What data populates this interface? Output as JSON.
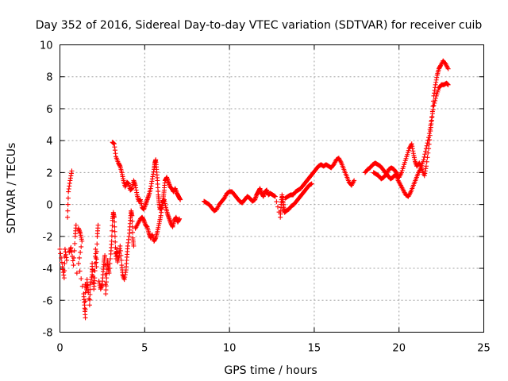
{
  "chart_data": {
    "type": "scatter",
    "title": "Day 352 of 2016, Sidereal Day-to-day VTEC variation (SDTVAR) for receiver cuib",
    "xlabel": "GPS time / hours",
    "ylabel": "SDTVAR / TECUs",
    "xlim": [
      0,
      25
    ],
    "ylim": [
      -8,
      10
    ],
    "xticks": [
      "0",
      "5",
      "10",
      "15",
      "20",
      "25"
    ],
    "yticks": [
      "-8",
      "-6",
      "-4",
      "-2",
      "0",
      "2",
      "4",
      "6",
      "8",
      "10"
    ],
    "grid": true,
    "marker": "plus",
    "color": "#ff0000",
    "series": [
      {
        "name": "SDTVAR",
        "points": [
          [
            0.0,
            -2.8
          ],
          [
            0.15,
            -3.9
          ],
          [
            0.25,
            -4.6
          ],
          [
            0.3,
            -2.8
          ],
          [
            0.4,
            -3.5
          ],
          [
            0.45,
            -0.8
          ],
          [
            0.5,
            0.8
          ],
          [
            0.6,
            1.5
          ],
          [
            0.7,
            2.1
          ],
          [
            0.55,
            -3.0
          ],
          [
            0.65,
            -2.7
          ],
          [
            0.8,
            -3.8
          ],
          [
            0.9,
            -2.0
          ],
          [
            0.95,
            -1.3
          ],
          [
            1.0,
            -4.3
          ],
          [
            1.1,
            -1.5
          ],
          [
            1.2,
            -1.8
          ],
          [
            1.3,
            -2.3
          ],
          [
            1.1,
            -3.7
          ],
          [
            1.4,
            -5.6
          ],
          [
            1.45,
            -6.3
          ],
          [
            1.5,
            -7.1
          ],
          [
            1.5,
            -5.0
          ],
          [
            1.6,
            -5.4
          ],
          [
            1.6,
            -4.7
          ],
          [
            1.75,
            -6.3
          ],
          [
            1.8,
            -5.0
          ],
          [
            1.9,
            -4.4
          ],
          [
            1.9,
            -3.7
          ],
          [
            2.0,
            -5.3
          ],
          [
            2.05,
            -4.6
          ],
          [
            2.1,
            -2.8
          ],
          [
            2.15,
            -3.9
          ],
          [
            2.2,
            -2.0
          ],
          [
            2.25,
            -1.3
          ],
          [
            2.3,
            -4.8
          ],
          [
            2.4,
            -5.3
          ],
          [
            2.5,
            -5.0
          ],
          [
            2.55,
            -4.2
          ],
          [
            2.6,
            -3.6
          ],
          [
            2.65,
            -3.2
          ],
          [
            2.7,
            -5.6
          ],
          [
            2.75,
            -4.6
          ],
          [
            2.8,
            -3.5
          ],
          [
            2.85,
            -3.9
          ],
          [
            2.9,
            -4.3
          ],
          [
            3.0,
            -3.1
          ],
          [
            3.05,
            -2.3
          ],
          [
            3.1,
            -1.0
          ],
          [
            3.15,
            -0.5
          ],
          [
            3.2,
            -0.8
          ],
          [
            3.25,
            -2.0
          ],
          [
            3.3,
            -3.4
          ],
          [
            3.35,
            -2.8
          ],
          [
            3.4,
            -3.6
          ],
          [
            3.5,
            -3.2
          ],
          [
            3.55,
            -2.6
          ],
          [
            3.65,
            -3.8
          ],
          [
            3.7,
            -4.4
          ],
          [
            3.8,
            -4.7
          ],
          [
            3.9,
            -4.1
          ],
          [
            3.95,
            -3.3
          ],
          [
            4.0,
            -2.6
          ],
          [
            4.1,
            -1.8
          ],
          [
            4.15,
            -1.0
          ],
          [
            4.2,
            -0.4
          ],
          [
            4.25,
            -0.7
          ],
          [
            4.3,
            -2.1
          ],
          [
            4.35,
            -2.6
          ],
          [
            3.1,
            3.9
          ],
          [
            3.2,
            3.8
          ],
          [
            3.3,
            3.0
          ],
          [
            3.45,
            2.6
          ],
          [
            3.55,
            2.4
          ],
          [
            3.65,
            2.0
          ],
          [
            3.75,
            1.5
          ],
          [
            3.85,
            1.1
          ],
          [
            3.95,
            1.4
          ],
          [
            4.05,
            1.3
          ],
          [
            4.15,
            0.9
          ],
          [
            4.25,
            1.0
          ],
          [
            4.35,
            1.5
          ],
          [
            4.45,
            1.2
          ],
          [
            4.55,
            0.6
          ],
          [
            4.65,
            0.2
          ],
          [
            4.75,
            0.3
          ],
          [
            4.85,
            -0.2
          ],
          [
            4.95,
            -0.3
          ],
          [
            5.05,
            0.0
          ],
          [
            5.15,
            0.3
          ],
          [
            5.25,
            0.6
          ],
          [
            5.35,
            1.0
          ],
          [
            5.45,
            1.6
          ],
          [
            5.55,
            2.2
          ],
          [
            5.6,
            2.6
          ],
          [
            5.65,
            2.8
          ],
          [
            5.7,
            2.2
          ],
          [
            5.75,
            1.5
          ],
          [
            5.8,
            0.6
          ],
          [
            5.85,
            0.1
          ],
          [
            5.9,
            -0.3
          ],
          [
            6.0,
            -0.2
          ],
          [
            6.1,
            0.4
          ],
          [
            6.15,
            0.9
          ],
          [
            6.2,
            1.5
          ],
          [
            6.3,
            1.7
          ],
          [
            6.4,
            1.4
          ],
          [
            6.5,
            1.1
          ],
          [
            6.6,
            1.0
          ],
          [
            6.7,
            0.8
          ],
          [
            6.8,
            1.0
          ],
          [
            6.9,
            0.7
          ],
          [
            7.0,
            0.5
          ],
          [
            7.1,
            0.3
          ],
          [
            4.45,
            -1.5
          ],
          [
            4.6,
            -1.2
          ],
          [
            4.75,
            -0.9
          ],
          [
            4.85,
            -0.8
          ],
          [
            4.95,
            -1.0
          ],
          [
            5.05,
            -1.3
          ],
          [
            5.15,
            -1.4
          ],
          [
            5.25,
            -1.8
          ],
          [
            5.35,
            -2.1
          ],
          [
            5.45,
            -1.9
          ],
          [
            5.55,
            -2.3
          ],
          [
            5.65,
            -2.1
          ],
          [
            5.75,
            -1.7
          ],
          [
            5.85,
            -1.2
          ],
          [
            5.95,
            -0.7
          ],
          [
            6.05,
            0.1
          ],
          [
            6.15,
            0.3
          ],
          [
            6.25,
            -0.2
          ],
          [
            6.35,
            -0.6
          ],
          [
            6.45,
            -0.9
          ],
          [
            6.55,
            -1.2
          ],
          [
            6.65,
            -1.4
          ],
          [
            6.75,
            -1.0
          ],
          [
            6.85,
            -0.8
          ],
          [
            6.95,
            -1.1
          ],
          [
            7.05,
            -0.9
          ],
          [
            8.5,
            0.2
          ],
          [
            8.65,
            0.1
          ],
          [
            8.8,
            0.0
          ],
          [
            8.95,
            -0.2
          ],
          [
            9.1,
            -0.4
          ],
          [
            9.25,
            -0.3
          ],
          [
            9.4,
            0.0
          ],
          [
            9.55,
            0.2
          ],
          [
            9.7,
            0.4
          ],
          [
            9.85,
            0.7
          ],
          [
            10.0,
            0.8
          ],
          [
            10.15,
            0.8
          ],
          [
            10.3,
            0.6
          ],
          [
            10.45,
            0.4
          ],
          [
            10.6,
            0.2
          ],
          [
            10.75,
            0.1
          ],
          [
            10.9,
            0.3
          ],
          [
            11.05,
            0.5
          ],
          [
            11.2,
            0.4
          ],
          [
            11.35,
            0.2
          ],
          [
            11.5,
            0.3
          ],
          [
            11.6,
            0.6
          ],
          [
            11.7,
            0.8
          ],
          [
            11.8,
            1.0
          ],
          [
            11.9,
            0.7
          ],
          [
            12.0,
            0.5
          ],
          [
            12.1,
            0.8
          ],
          [
            12.2,
            0.9
          ],
          [
            12.3,
            0.6
          ],
          [
            12.4,
            0.7
          ],
          [
            12.55,
            0.6
          ],
          [
            12.7,
            0.5
          ],
          [
            13.0,
            -0.8
          ],
          [
            13.05,
            0.0
          ],
          [
            13.1,
            0.6
          ],
          [
            13.15,
            0.2
          ],
          [
            13.2,
            -0.2
          ],
          [
            13.25,
            -0.5
          ],
          [
            13.35,
            -0.4
          ],
          [
            13.5,
            -0.3
          ],
          [
            13.65,
            -0.1
          ],
          [
            13.8,
            0.0
          ],
          [
            13.95,
            0.2
          ],
          [
            14.1,
            0.4
          ],
          [
            14.25,
            0.6
          ],
          [
            14.4,
            0.8
          ],
          [
            14.55,
            1.0
          ],
          [
            14.7,
            1.2
          ],
          [
            14.85,
            1.3
          ],
          [
            13.3,
            0.4
          ],
          [
            13.45,
            0.5
          ],
          [
            13.6,
            0.6
          ],
          [
            13.75,
            0.6
          ],
          [
            13.9,
            0.8
          ],
          [
            14.05,
            0.9
          ],
          [
            14.2,
            1.0
          ],
          [
            14.35,
            1.2
          ],
          [
            14.5,
            1.4
          ],
          [
            14.65,
            1.6
          ],
          [
            14.8,
            1.8
          ],
          [
            14.95,
            2.0
          ],
          [
            15.1,
            2.2
          ],
          [
            15.25,
            2.4
          ],
          [
            15.4,
            2.5
          ],
          [
            15.55,
            2.4
          ],
          [
            15.7,
            2.5
          ],
          [
            15.85,
            2.4
          ],
          [
            16.0,
            2.3
          ],
          [
            16.15,
            2.5
          ],
          [
            16.3,
            2.8
          ],
          [
            16.45,
            2.9
          ],
          [
            16.6,
            2.6
          ],
          [
            16.75,
            2.2
          ],
          [
            16.9,
            1.8
          ],
          [
            17.05,
            1.4
          ],
          [
            17.2,
            1.2
          ],
          [
            17.35,
            1.5
          ],
          [
            18.0,
            2.0
          ],
          [
            18.15,
            2.2
          ],
          [
            18.3,
            2.3
          ],
          [
            18.45,
            2.5
          ],
          [
            18.6,
            2.6
          ],
          [
            18.75,
            2.5
          ],
          [
            18.9,
            2.4
          ],
          [
            19.05,
            2.2
          ],
          [
            19.2,
            2.0
          ],
          [
            19.35,
            1.8
          ],
          [
            19.5,
            1.6
          ],
          [
            19.65,
            1.7
          ],
          [
            19.8,
            1.9
          ],
          [
            19.95,
            1.5
          ],
          [
            20.1,
            1.2
          ],
          [
            20.25,
            0.9
          ],
          [
            20.4,
            0.6
          ],
          [
            20.55,
            0.5
          ],
          [
            20.7,
            0.8
          ],
          [
            20.85,
            1.2
          ],
          [
            21.0,
            1.6
          ],
          [
            21.15,
            2.0
          ],
          [
            21.3,
            2.3
          ],
          [
            21.45,
            2.8
          ],
          [
            21.6,
            3.5
          ],
          [
            21.75,
            4.2
          ],
          [
            21.9,
            5.2
          ],
          [
            22.05,
            6.2
          ],
          [
            22.2,
            6.8
          ],
          [
            22.35,
            7.3
          ],
          [
            22.5,
            7.5
          ],
          [
            22.65,
            7.5
          ],
          [
            22.8,
            7.6
          ],
          [
            22.9,
            7.5
          ],
          [
            18.5,
            2.0
          ],
          [
            18.65,
            1.9
          ],
          [
            18.8,
            1.8
          ],
          [
            18.95,
            1.6
          ],
          [
            19.1,
            1.7
          ],
          [
            19.25,
            1.9
          ],
          [
            19.4,
            2.2
          ],
          [
            19.55,
            2.3
          ],
          [
            19.7,
            2.2
          ],
          [
            19.85,
            2.0
          ],
          [
            20.0,
            1.7
          ],
          [
            20.15,
            2.0
          ],
          [
            20.3,
            2.5
          ],
          [
            20.45,
            3.0
          ],
          [
            20.6,
            3.5
          ],
          [
            20.75,
            3.8
          ],
          [
            20.85,
            3.2
          ],
          [
            20.95,
            2.7
          ],
          [
            21.05,
            2.4
          ],
          [
            21.2,
            2.6
          ],
          [
            21.35,
            2.2
          ],
          [
            21.5,
            1.8
          ],
          [
            21.6,
            2.4
          ],
          [
            21.75,
            3.5
          ],
          [
            21.85,
            4.6
          ],
          [
            21.95,
            5.5
          ],
          [
            22.05,
            6.8
          ],
          [
            22.15,
            7.5
          ],
          [
            22.25,
            8.1
          ],
          [
            22.35,
            8.5
          ],
          [
            22.45,
            8.7
          ],
          [
            22.6,
            9.0
          ],
          [
            22.75,
            8.8
          ],
          [
            22.9,
            8.5
          ]
        ]
      }
    ]
  }
}
